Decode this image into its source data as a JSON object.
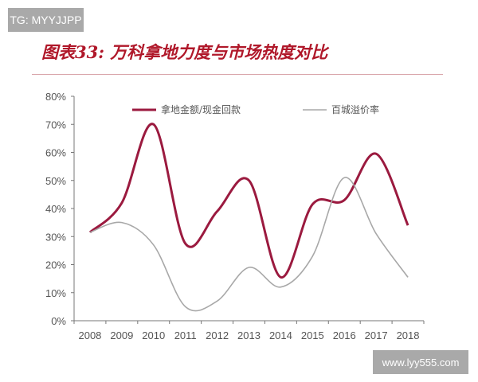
{
  "watermarks": {
    "top_left": "TG: MYYJJPP",
    "bottom_right": "www.lyy555.com"
  },
  "chart_data": {
    "type": "line",
    "title": "图表33:  万科拿地力度与市场热度对比",
    "categories": [
      "2008",
      "2009",
      "2010",
      "2011",
      "2012",
      "2013",
      "2014",
      "2015",
      "2016",
      "2017",
      "2018"
    ],
    "series": [
      {
        "name": "拿地金额/现金回款",
        "color": "#9b1a3f",
        "values": [
          31.5,
          42,
          70,
          27.5,
          39,
          50,
          15.5,
          41.5,
          43,
          59.5,
          34
        ]
      },
      {
        "name": "百城溢价率",
        "color": "#a8a8a8",
        "values": [
          31.5,
          35,
          27,
          5,
          7,
          19,
          12,
          23,
          51,
          31,
          15.5
        ]
      }
    ],
    "yticks": [
      "0%",
      "10%",
      "20%",
      "30%",
      "40%",
      "50%",
      "60%",
      "70%",
      "80%"
    ],
    "ylim": [
      0,
      80
    ],
    "xlabel": "",
    "ylabel": "",
    "legend": "top-center",
    "grid": false
  }
}
